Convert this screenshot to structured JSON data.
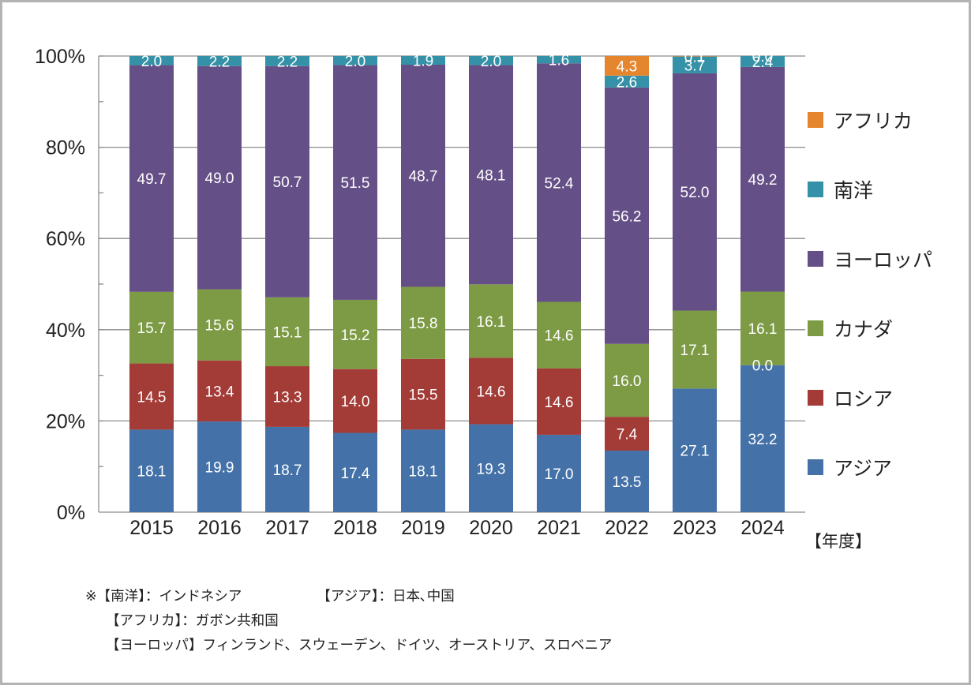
{
  "chart_data": {
    "type": "bar",
    "stacked": true,
    "categories": [
      "2015",
      "2016",
      "2017",
      "2018",
      "2019",
      "2020",
      "2021",
      "2022",
      "2023",
      "2024"
    ],
    "x_unit_label": "【年度】",
    "y_ticks": [
      "0%",
      "20%",
      "40%",
      "60%",
      "80%",
      "100%"
    ],
    "ylim": [
      0,
      100
    ],
    "series": [
      {
        "name": "アジア",
        "color": "#4472a8",
        "values": [
          18.1,
          19.9,
          18.7,
          17.4,
          18.1,
          19.3,
          17.0,
          13.5,
          27.1,
          32.2
        ]
      },
      {
        "name": "ロシア",
        "color": "#a33b37",
        "values": [
          14.5,
          13.4,
          13.3,
          14.0,
          15.5,
          14.6,
          14.6,
          7.4,
          0,
          0.0
        ]
      },
      {
        "name": "カナダ",
        "color": "#7d9a45",
        "values": [
          15.7,
          15.6,
          15.1,
          15.2,
          15.8,
          16.1,
          14.6,
          16.0,
          17.1,
          16.1
        ]
      },
      {
        "name": "ヨーロッパ",
        "color": "#654f87",
        "values": [
          49.7,
          49.0,
          50.7,
          51.5,
          48.7,
          48.1,
          52.4,
          56.2,
          52.0,
          49.2
        ]
      },
      {
        "name": "南洋",
        "color": "#3591a7",
        "values": [
          2.0,
          2.2,
          2.2,
          2.0,
          1.9,
          2.0,
          1.6,
          2.6,
          3.7,
          2.4
        ]
      },
      {
        "name": "アフリカ",
        "color": "#e5862f",
        "values": [
          0,
          0,
          0,
          0,
          0,
          0,
          0,
          4.3,
          0.1,
          0.0
        ]
      }
    ],
    "data_labels": [
      [
        "18.1",
        "19.9",
        "18.7",
        "17.4",
        "18.1",
        "19.3",
        "17.0",
        "13.5",
        "27.1",
        "32.2"
      ],
      [
        "14.5",
        "13.4",
        "13.3",
        "14.0",
        "15.5",
        "14.6",
        "14.6",
        "7.4",
        "",
        "0.0"
      ],
      [
        "15.7",
        "15.6",
        "15.1",
        "15.2",
        "15.8",
        "16.1",
        "14.6",
        "16.0",
        "17.1",
        "16.1"
      ],
      [
        "49.7",
        "49.0",
        "50.7",
        "51.5",
        "48.7",
        "48.1",
        "52.4",
        "56.2",
        "52.0",
        "49.2"
      ],
      [
        "2.0",
        "2.2",
        "2.2",
        "2.0",
        "1.9",
        "2.0",
        "1.6",
        "2.6",
        "3.7",
        "2.4"
      ],
      [
        "",
        "",
        "",
        "",
        "",
        "",
        "",
        "4.3",
        "0.1",
        "0.0"
      ]
    ],
    "legend_order": [
      "アフリカ",
      "南洋",
      "ヨーロッパ",
      "カナダ",
      "ロシア",
      "アジア"
    ],
    "legend_position": "right",
    "grid": true
  },
  "notes": [
    "※【南洋】：インドネシア",
    "【アジア】：日本､中国",
    "【アフリカ】：ガボン共和国",
    "【ヨーロッパ】フィンランド、スウェーデン、ドイツ、オーストリア、スロベニア"
  ]
}
